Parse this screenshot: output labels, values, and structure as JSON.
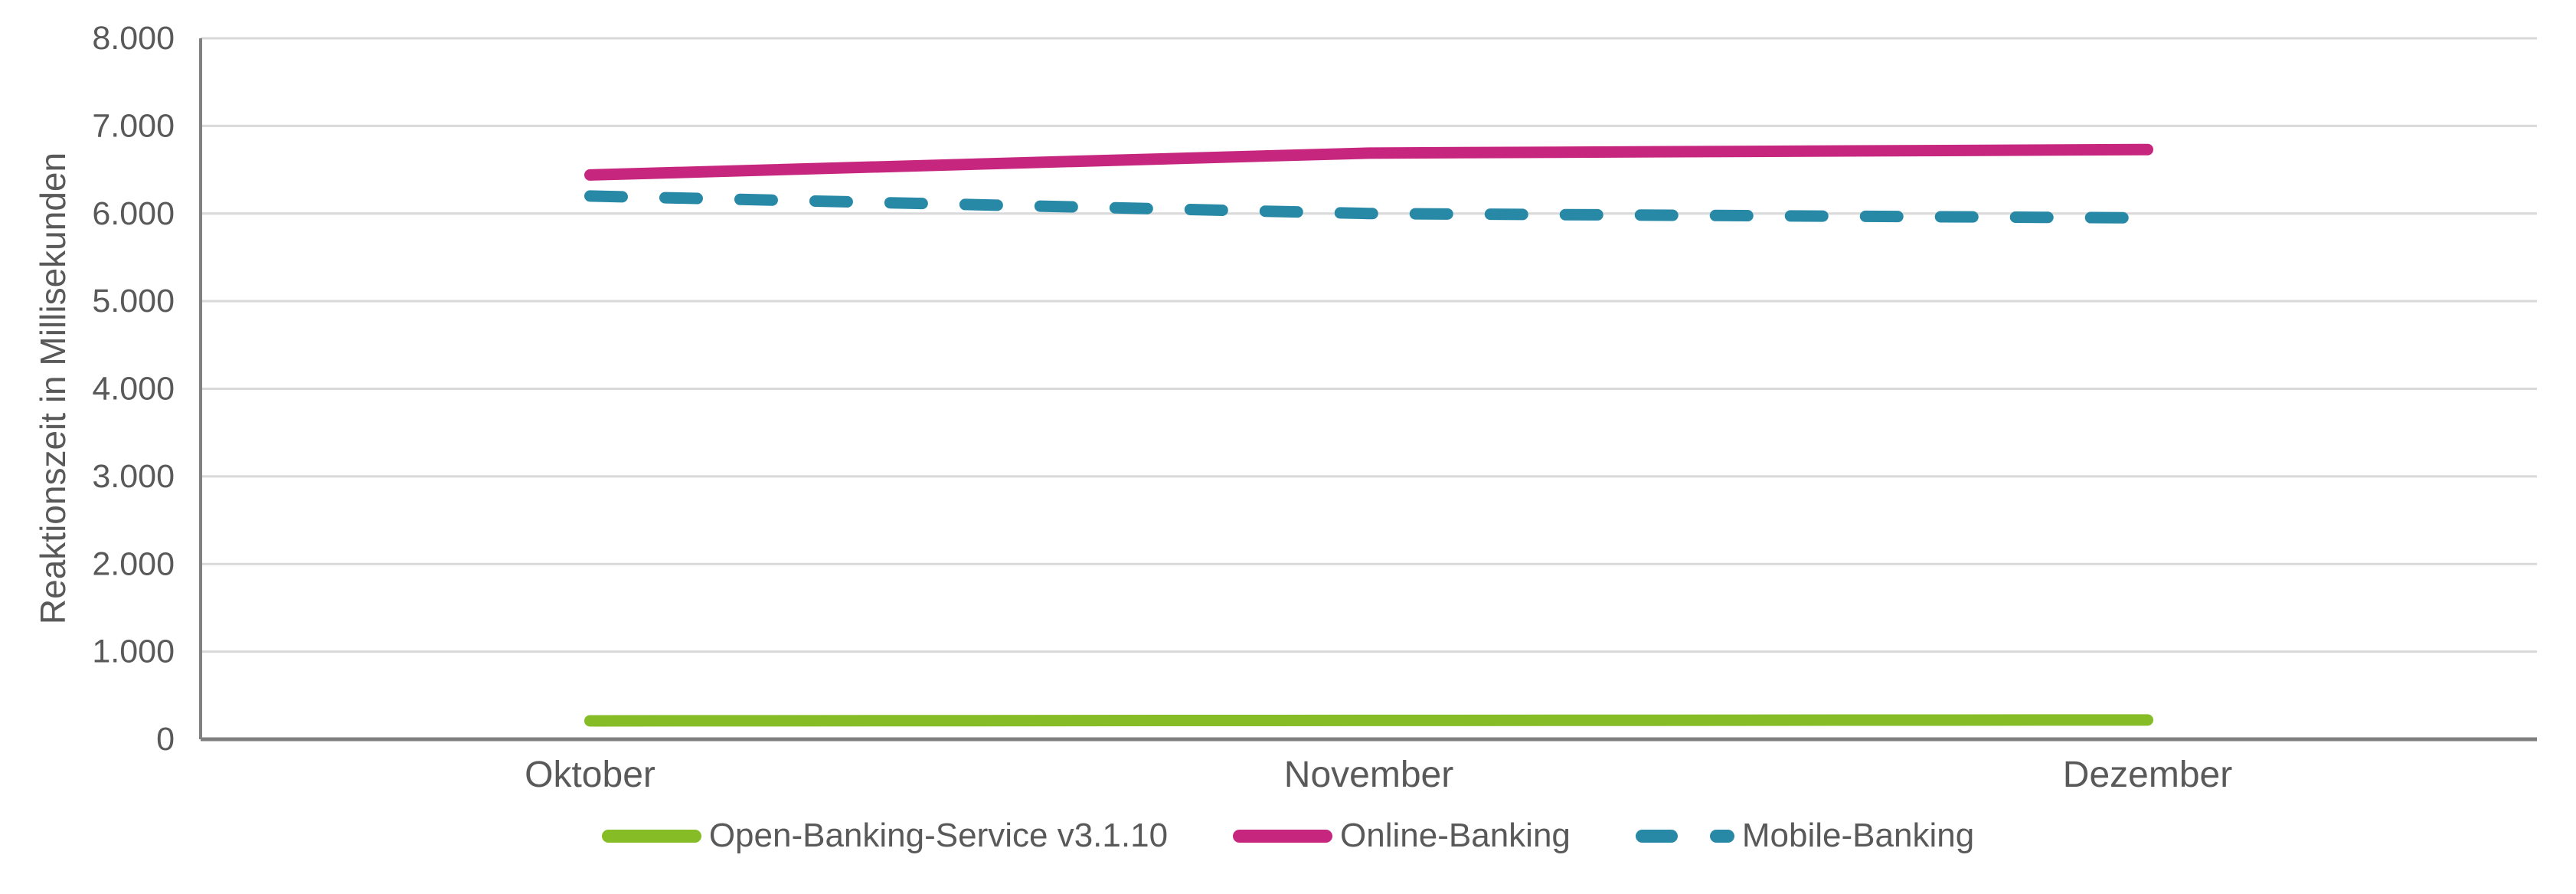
{
  "chart_data": {
    "type": "line",
    "title": "",
    "xlabel": "",
    "ylabel": "Reaktionszeit in Millisekunden",
    "categories": [
      "Oktober",
      "November",
      "Dezember"
    ],
    "y_tick_labels": [
      "0",
      "1.000",
      "2.000",
      "3.000",
      "4.000",
      "5.000",
      "6.000",
      "7.000",
      "8.000"
    ],
    "ylim": [
      0,
      8000
    ],
    "grid": "horizontal",
    "legend_position": "bottom-center",
    "series": [
      {
        "name": "Open-Banking-Service v3.1.10",
        "values": [
          210,
          215,
          220
        ],
        "color": "#86BC25",
        "style": "solid"
      },
      {
        "name": "Online-Banking",
        "values": [
          6440,
          6690,
          6730
        ],
        "color": "#C7267F",
        "style": "solid"
      },
      {
        "name": "Mobile-Banking",
        "values": [
          6200,
          6000,
          5950
        ],
        "color": "#2889A7",
        "style": "dashed"
      }
    ]
  },
  "colors": {
    "gridline": "#D9D9D9",
    "axis": "#808080",
    "text": "#595959",
    "background": "#FFFFFF"
  }
}
